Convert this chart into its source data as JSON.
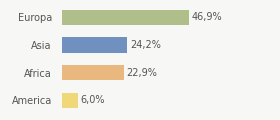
{
  "categories": [
    "Europa",
    "Asia",
    "Africa",
    "America"
  ],
  "values": [
    46.9,
    24.2,
    22.9,
    6.0
  ],
  "labels": [
    "46,9%",
    "24,2%",
    "22,9%",
    "6,0%"
  ],
  "bar_colors": [
    "#b0be8a",
    "#7090bf",
    "#e8b87e",
    "#f0d878"
  ],
  "background_color": "#f7f7f5",
  "xlim": [
    0,
    68
  ],
  "bar_height": 0.55,
  "label_fontsize": 7,
  "category_fontsize": 7
}
